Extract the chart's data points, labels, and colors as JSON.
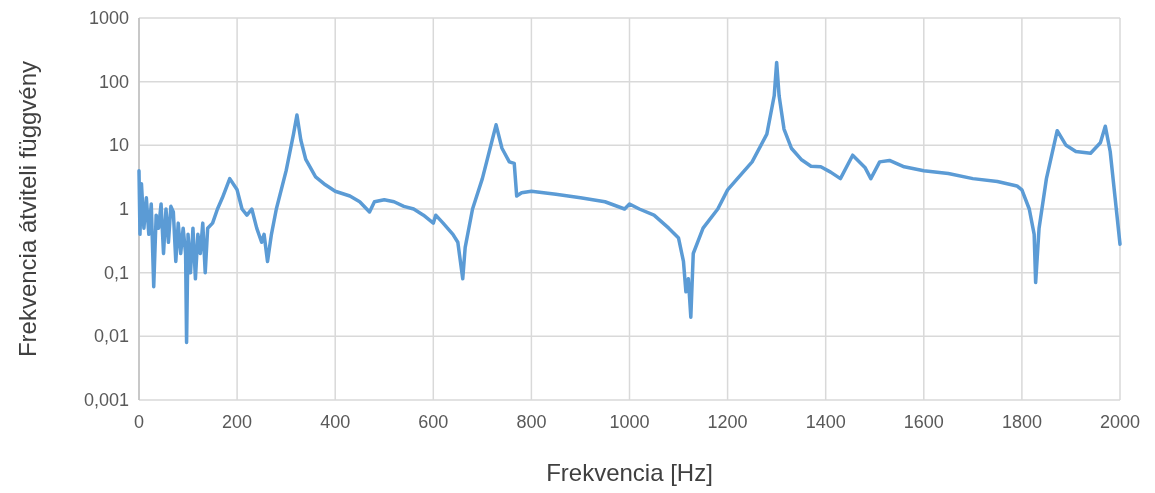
{
  "chart_data": {
    "type": "line",
    "xlabel": "Frekvencia [Hz]",
    "ylabel": "Frekvencia átviteli függvény",
    "log": "y",
    "grid": true,
    "xlim": [
      0,
      2000
    ],
    "xticks": [
      0,
      200,
      400,
      600,
      800,
      1000,
      1200,
      1400,
      1600,
      1800,
      2000
    ],
    "ylim": [
      0.001,
      1000
    ],
    "yticks": [
      {
        "value": 0.001,
        "label": "0,001"
      },
      {
        "value": 0.01,
        "label": "0,01"
      },
      {
        "value": 0.1,
        "label": "0,1"
      },
      1,
      10,
      100,
      1000
    ],
    "series": [
      {
        "color": "#5b9bd5",
        "x": [
          0,
          2,
          5,
          10,
          15,
          20,
          25,
          30,
          35,
          40,
          45,
          50,
          55,
          60,
          65,
          70,
          75,
          80,
          85,
          90,
          95,
          97,
          100,
          105,
          110,
          115,
          120,
          125,
          130,
          135,
          140,
          150,
          160,
          170,
          185,
          200,
          210,
          220,
          230,
          240,
          250,
          255,
          262,
          270,
          280,
          300,
          315,
          322,
          330,
          340,
          360,
          380,
          400,
          430,
          450,
          470,
          480,
          500,
          520,
          540,
          560,
          580,
          600,
          605,
          620,
          640,
          650,
          660,
          665,
          680,
          700,
          720,
          728,
          740,
          755,
          765,
          770,
          780,
          800,
          850,
          900,
          950,
          990,
          1000,
          1020,
          1050,
          1080,
          1100,
          1110,
          1115,
          1120,
          1125,
          1130,
          1150,
          1180,
          1200,
          1220,
          1250,
          1280,
          1295,
          1300,
          1305,
          1315,
          1330,
          1350,
          1370,
          1390,
          1410,
          1430,
          1455,
          1480,
          1492,
          1510,
          1530,
          1560,
          1600,
          1650,
          1700,
          1750,
          1790,
          1800,
          1815,
          1825,
          1828,
          1835,
          1850,
          1872,
          1890,
          1910,
          1940,
          1960,
          1970,
          1980,
          1990,
          2000
        ],
        "values": [
          4,
          0.4,
          2.5,
          0.5,
          1.5,
          0.4,
          1.2,
          0.06,
          0.8,
          0.5,
          1.2,
          0.2,
          1,
          0.3,
          1.1,
          0.9,
          0.15,
          0.6,
          0.2,
          0.5,
          0.2,
          0.008,
          0.4,
          0.1,
          0.5,
          0.08,
          0.4,
          0.2,
          0.6,
          0.1,
          0.5,
          0.6,
          1,
          1.5,
          3,
          2,
          1,
          0.8,
          1,
          0.5,
          0.3,
          0.4,
          0.15,
          0.4,
          1,
          4,
          15,
          30,
          12,
          6,
          3.2,
          2.4,
          1.9,
          1.6,
          1.3,
          0.9,
          1.3,
          1.4,
          1.3,
          1.1,
          1,
          0.8,
          0.6,
          0.8,
          0.6,
          0.4,
          0.3,
          0.08,
          0.25,
          1,
          3,
          12,
          21,
          9,
          5.5,
          5.2,
          1.6,
          1.8,
          1.9,
          1.7,
          1.5,
          1.3,
          1,
          1.2,
          1,
          0.8,
          0.5,
          0.35,
          0.15,
          0.05,
          0.08,
          0.02,
          0.2,
          0.5,
          1,
          2,
          3,
          5.5,
          15,
          60,
          200,
          60,
          18,
          9,
          6,
          4.7,
          4.6,
          3.8,
          3,
          7,
          4.5,
          3,
          5.5,
          5.8,
          4.6,
          4,
          3.6,
          3,
          2.7,
          2.3,
          2,
          1,
          0.4,
          0.07,
          0.5,
          3,
          17,
          10,
          8,
          7.5,
          11,
          20,
          8,
          1.5,
          0.28
        ]
      }
    ]
  }
}
